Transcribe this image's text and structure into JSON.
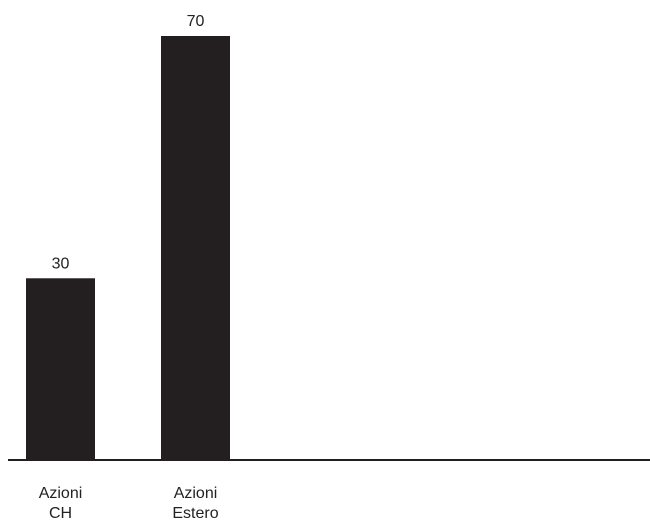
{
  "chart_data": {
    "type": "bar",
    "categories": [
      [
        "Azioni",
        "CH"
      ],
      [
        "Azioni",
        "Estero"
      ]
    ],
    "values": [
      30,
      70
    ],
    "data_labels": [
      "30",
      "70"
    ],
    "title": "",
    "xlabel": "",
    "ylabel": "",
    "ylim": [
      0,
      70
    ],
    "grid": false,
    "legend": "none",
    "colors": {
      "bar": "#231f20",
      "axis": "#231f20",
      "text": "#222222"
    }
  }
}
